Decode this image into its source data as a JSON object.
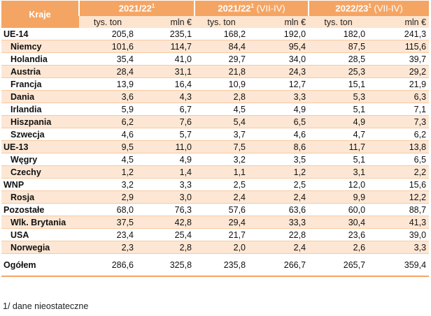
{
  "headers": {
    "country": "Kraje",
    "periods": [
      {
        "label": "2021/22",
        "sup": "1",
        "suffix": ""
      },
      {
        "label": "2021/22",
        "sup": "1",
        "suffix": " (VII-IV)"
      },
      {
        "label": "2022/23",
        "sup": "1",
        "suffix": " (VII-IV)"
      }
    ],
    "unit_tons": "tys. ton",
    "unit_eur": "mln €"
  },
  "rows": [
    {
      "name": "UE-14",
      "level": "group",
      "shade": false,
      "values": [
        "205,8",
        "235,1",
        "168,2",
        "192,0",
        "182,0",
        "241,3"
      ]
    },
    {
      "name": "Niemcy",
      "level": "item",
      "shade": true,
      "values": [
        "101,6",
        "114,7",
        "84,4",
        "95,4",
        "87,5",
        "115,6"
      ]
    },
    {
      "name": "Holandia",
      "level": "item",
      "shade": false,
      "values": [
        "35,4",
        "41,0",
        "29,7",
        "34,0",
        "28,5",
        "39,7"
      ]
    },
    {
      "name": "Austria",
      "level": "item",
      "shade": true,
      "values": [
        "28,4",
        "31,1",
        "21,8",
        "24,3",
        "25,3",
        "29,2"
      ]
    },
    {
      "name": "Francja",
      "level": "item",
      "shade": false,
      "values": [
        "13,9",
        "16,4",
        "10,9",
        "12,7",
        "15,1",
        "21,9"
      ]
    },
    {
      "name": "Dania",
      "level": "item",
      "shade": true,
      "values": [
        "3,6",
        "4,3",
        "2,8",
        "3,3",
        "5,3",
        "6,3"
      ]
    },
    {
      "name": "Irlandia",
      "level": "item",
      "shade": false,
      "values": [
        "5,9",
        "6,7",
        "4,5",
        "4,9",
        "5,1",
        "7,1"
      ]
    },
    {
      "name": "Hiszpania",
      "level": "item",
      "shade": true,
      "values": [
        "6,2",
        "7,6",
        "5,4",
        "6,5",
        "4,9",
        "7,3"
      ]
    },
    {
      "name": "Szwecja",
      "level": "item",
      "shade": false,
      "values": [
        "4,6",
        "5,7",
        "3,7",
        "4,6",
        "4,7",
        "6,2"
      ]
    },
    {
      "name": "UE-13",
      "level": "group",
      "shade": true,
      "values": [
        "9,5",
        "11,0",
        "7,5",
        "8,6",
        "11,7",
        "13,8"
      ]
    },
    {
      "name": "Węgry",
      "level": "item",
      "shade": false,
      "values": [
        "4,5",
        "4,9",
        "3,2",
        "3,5",
        "5,1",
        "6,5"
      ]
    },
    {
      "name": "Czechy",
      "level": "item",
      "shade": true,
      "values": [
        "1,2",
        "1,4",
        "1,1",
        "1,2",
        "3,1",
        "2,2"
      ]
    },
    {
      "name": "WNP",
      "level": "group",
      "shade": false,
      "values": [
        "3,2",
        "3,3",
        "2,5",
        "2,5",
        "12,0",
        "15,6"
      ]
    },
    {
      "name": "Rosja",
      "level": "item",
      "shade": true,
      "values": [
        "2,9",
        "3,0",
        "2,4",
        "2,4",
        "9,9",
        "12,2"
      ]
    },
    {
      "name": "Pozostałe",
      "level": "group",
      "shade": false,
      "values": [
        "68,0",
        "76,3",
        "57,6",
        "63,6",
        "60,0",
        "88,7"
      ]
    },
    {
      "name": "Wlk. Brytania",
      "level": "item",
      "shade": true,
      "values": [
        "37,5",
        "42,8",
        "29,4",
        "33,3",
        "30,4",
        "41,3"
      ]
    },
    {
      "name": "USA",
      "level": "item",
      "shade": false,
      "values": [
        "23,4",
        "25,4",
        "21,7",
        "22,8",
        "23,6",
        "39,0"
      ]
    },
    {
      "name": "Norwegia",
      "level": "item",
      "shade": true,
      "values": [
        "2,3",
        "2,8",
        "2,0",
        "2,4",
        "2,6",
        "3,3"
      ]
    },
    {
      "name": "Ogółem",
      "level": "total",
      "shade": false,
      "values": [
        "286,6",
        "325,8",
        "235,8",
        "266,7",
        "265,7",
        "359,4"
      ]
    }
  ],
  "footnote": "1/ dane nieostateczne"
}
